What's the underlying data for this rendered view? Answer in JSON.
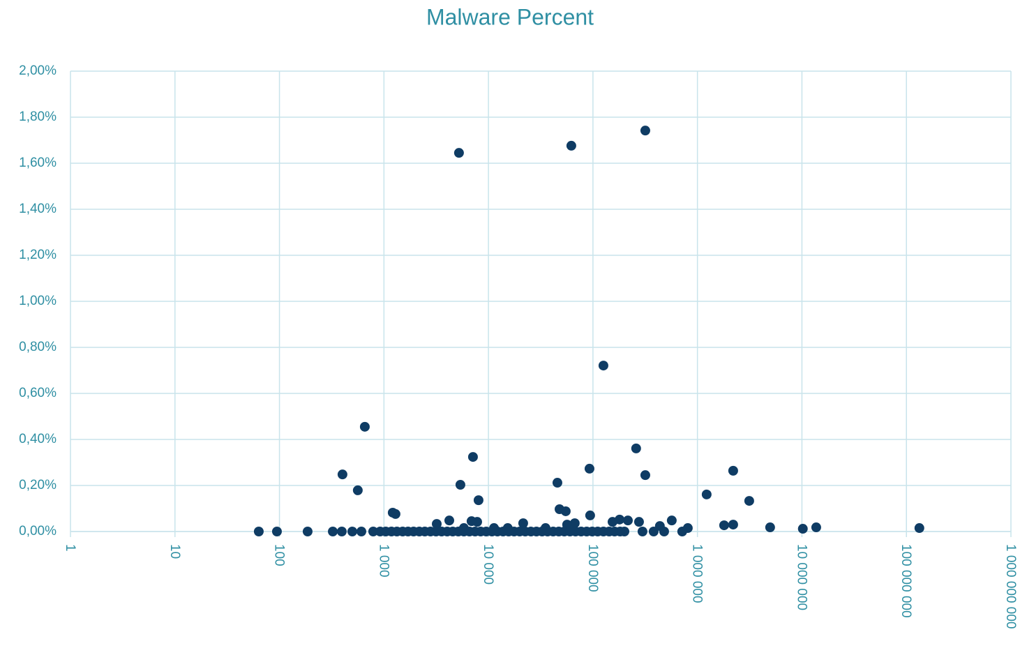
{
  "chart_data": {
    "type": "scatter",
    "title": "Malware Percent",
    "xscale": "log",
    "grid": true,
    "color": "#0f3c64",
    "xlim": [
      1,
      1000000000
    ],
    "xticks": [
      1,
      10,
      100,
      {
        "value": 1000,
        "label": "1 000"
      },
      {
        "value": 10000,
        "label": "10 000"
      },
      {
        "value": 100000,
        "label": "100 000"
      },
      {
        "value": 1000000,
        "label": "1 000 000"
      },
      {
        "value": 10000000,
        "label": "10 000 000"
      },
      {
        "value": 100000000,
        "label": "100 000 000"
      },
      {
        "value": 1000000000,
        "label": "1 000 000 000"
      }
    ],
    "ylim": [
      0,
      2
    ],
    "yticks": [
      {
        "value": 0,
        "label": "0,00%"
      },
      {
        "value": 0.2,
        "label": "0,20%"
      },
      {
        "value": 0.4,
        "label": "0,40%"
      },
      {
        "value": 0.6,
        "label": "0,60%"
      },
      {
        "value": 0.8,
        "label": "0,80%"
      },
      {
        "value": 1,
        "label": "1,00%"
      },
      {
        "value": 1.2,
        "label": "1,20%"
      },
      {
        "value": 1.4,
        "label": "1,40%"
      },
      {
        "value": 1.6,
        "label": "1,60%"
      },
      {
        "value": 1.8,
        "label": "1,80%"
      },
      {
        "value": 2,
        "label": "2,00%"
      }
    ],
    "series": [
      {
        "name": "Malware Percent",
        "color": "#0f3c64",
        "x": [
          5224,
          62100,
          317000,
          126000,
          656,
          401,
          562,
          7110,
          5390,
          8040,
          1213,
          1290,
          45700,
          92700,
          259000,
          317000,
          47900,
          54900,
          94000,
          1225000,
          2198000,
          3130000,
          1800000,
          2198000,
          4960000,
          10200000,
          13700000,
          133000000,
          568000,
          809000,
          715000,
          437000,
          381000,
          480000,
          276000,
          298000,
          216000,
          180000,
          154000,
          200000,
          67000,
          56600,
          21500,
          35200,
          11300,
          7800,
          6890,
          4220,
          3200,
          5820,
          15300,
          63.4,
          94.6,
          186,
          324,
          395,
          498,
          608,
          789,
          920,
          1040,
          1180,
          1330,
          1510,
          1700,
          1920,
          2180,
          2460,
          2790,
          3150,
          3560,
          4030,
          4550,
          5150,
          5820,
          6580,
          7450,
          8420,
          9520,
          10800,
          12200,
          13800,
          15600,
          17600,
          19900,
          22500,
          25500,
          28800,
          32600,
          36800,
          41600,
          47100,
          53200,
          60300,
          68100,
          77100,
          87100,
          98400,
          111000,
          126000,
          143000,
          161000,
          182000
        ],
        "values": [
          1.645,
          1.676,
          1.742,
          0.721,
          0.455,
          0.248,
          0.179,
          0.324,
          0.203,
          0.136,
          0.082,
          0.076,
          0.212,
          0.273,
          0.361,
          0.245,
          0.097,
          0.088,
          0.07,
          0.161,
          0.264,
          0.133,
          0.027,
          0.03,
          0.018,
          0.012,
          0.018,
          0.015,
          0.048,
          0.015,
          0,
          0.024,
          0,
          0,
          0.042,
          0,
          0.048,
          0.052,
          0.042,
          0,
          0.036,
          0.03,
          0.036,
          0.015,
          0.015,
          0.042,
          0.045,
          0.048,
          0.033,
          0.015,
          0.015,
          0,
          0,
          0,
          0,
          0,
          0,
          0,
          0,
          0,
          0,
          0,
          0,
          0,
          0,
          0,
          0,
          0,
          0,
          0,
          0,
          0,
          0,
          0,
          0,
          0,
          0,
          0,
          0,
          0,
          0,
          0,
          0,
          0,
          0,
          0,
          0,
          0,
          0,
          0,
          0,
          0,
          0,
          0,
          0,
          0,
          0,
          0,
          0,
          0,
          0,
          0,
          0
        ]
      }
    ]
  }
}
